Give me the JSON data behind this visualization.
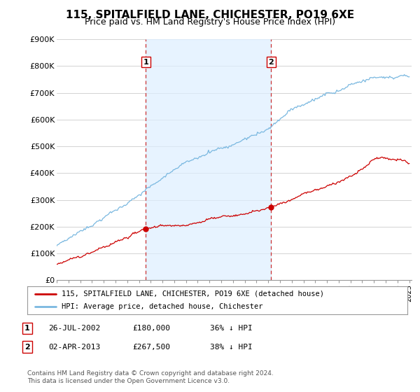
{
  "title": "115, SPITALFIELD LANE, CHICHESTER, PO19 6XE",
  "subtitle": "Price paid vs. HM Land Registry's House Price Index (HPI)",
  "ylim": [
    0,
    900000
  ],
  "yticks": [
    0,
    100000,
    200000,
    300000,
    400000,
    500000,
    600000,
    700000,
    800000,
    900000
  ],
  "ytick_labels": [
    "£0",
    "£100K",
    "£200K",
    "£300K",
    "£400K",
    "£500K",
    "£600K",
    "£700K",
    "£800K",
    "£900K"
  ],
  "hpi_color": "#7ab8e0",
  "hpi_shade_color": "#ddeeff",
  "price_color": "#cc0000",
  "dashed_color": "#cc3333",
  "purchase1_date": 2002.58,
  "purchase1_price": 180000,
  "purchase2_date": 2013.25,
  "purchase2_price": 267500,
  "legend_label1": "115, SPITALFIELD LANE, CHICHESTER, PO19 6XE (detached house)",
  "legend_label2": "HPI: Average price, detached house, Chichester",
  "table_row1": [
    "1",
    "26-JUL-2002",
    "£180,000",
    "36% ↓ HPI"
  ],
  "table_row2": [
    "2",
    "02-APR-2013",
    "£267,500",
    "38% ↓ HPI"
  ],
  "footer": "Contains HM Land Registry data © Crown copyright and database right 2024.\nThis data is licensed under the Open Government Licence v3.0.",
  "background_color": "#ffffff",
  "grid_color": "#cccccc",
  "title_fontsize": 11,
  "subtitle_fontsize": 9
}
